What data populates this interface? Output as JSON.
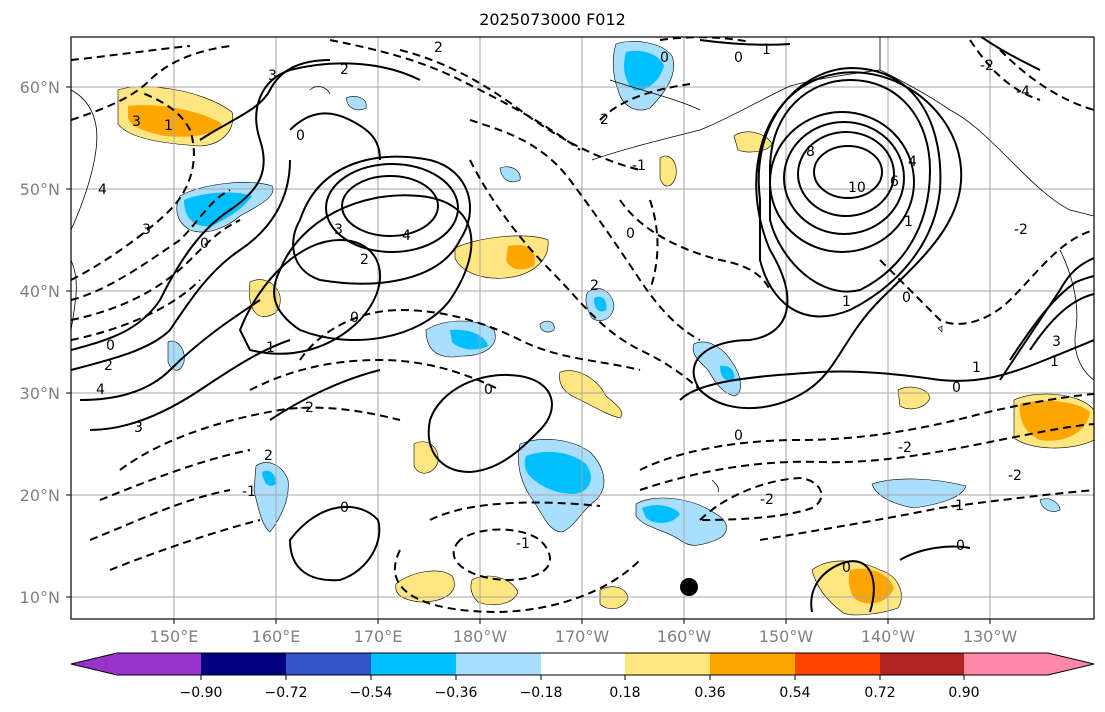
{
  "title": "2025073000 F012",
  "lat_labels": [
    "60°N",
    "50°N",
    "40°N",
    "30°N",
    "20°N",
    "10°N"
  ],
  "lon_labels": [
    "150°E",
    "160°E",
    "170°E",
    "180°W",
    "170°W",
    "160°W",
    "150°W",
    "140°W",
    "130°W"
  ],
  "colorbar": {
    "ticks": [
      "−0.90",
      "−0.72",
      "−0.54",
      "−0.36",
      "−0.18",
      "0.18",
      "0.36",
      "0.54",
      "0.72",
      "0.90"
    ],
    "colors": [
      "#9933cc",
      "#000080",
      "#3355cc",
      "#00bfff",
      "#aadeff",
      "#ffffff",
      "#ffe680",
      "#ffa500",
      "#ff4500",
      "#b22222",
      "#ff88aa"
    ]
  },
  "contour_labels": [
    "1",
    "2",
    "0",
    "3",
    "4",
    "-2",
    "-1",
    "8",
    "10",
    "6",
    "-4"
  ],
  "marker": "black dot"
}
